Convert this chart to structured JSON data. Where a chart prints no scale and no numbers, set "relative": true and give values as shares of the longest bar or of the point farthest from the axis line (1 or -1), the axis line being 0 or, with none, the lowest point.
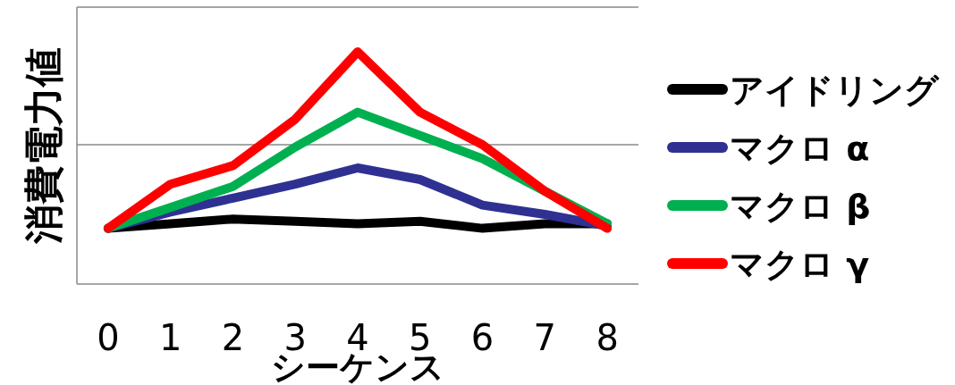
{
  "chart_data": {
    "type": "line",
    "relative": true,
    "xlabel": "シーケンス",
    "ylabel": "消費電力値",
    "categories": [
      "0",
      "1",
      "2",
      "3",
      "4",
      "5",
      "6",
      "7",
      "8"
    ],
    "ref_lines": [
      {
        "axis": "y",
        "value": 0.6,
        "color": "#888888"
      }
    ],
    "legend": "right",
    "line_style": "solid",
    "marker": "none",
    "series": [
      {
        "name": "アイドリング",
        "color": "#000000",
        "values": [
          0.24,
          0.26,
          0.28,
          0.27,
          0.26,
          0.27,
          0.24,
          0.26,
          0.26
        ]
      },
      {
        "name": "マクロ α",
        "color": "#2e3192",
        "values": [
          0.24,
          0.31,
          0.37,
          0.43,
          0.5,
          0.45,
          0.34,
          0.3,
          0.25
        ]
      },
      {
        "name": "マクロ β",
        "color": "#00b050",
        "values": [
          0.24,
          0.33,
          0.42,
          0.59,
          0.74,
          0.64,
          0.54,
          0.4,
          0.26
        ]
      },
      {
        "name": "マクロ γ",
        "color": "#ff0000",
        "values": [
          0.24,
          0.43,
          0.51,
          0.71,
          1,
          0.74,
          0.6,
          0.4,
          0.24
        ]
      }
    ]
  }
}
